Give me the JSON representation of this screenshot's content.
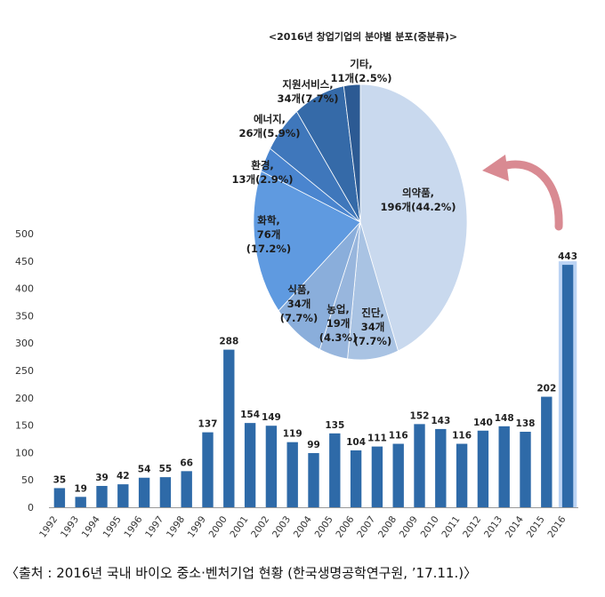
{
  "source_note": "〈출처 : 2016년 국내 바이오 중소·벤처기업 현황 (한국생명공학연구원, ’17.11.)〉",
  "colors": {
    "bar": "#2e6aa8",
    "bar_highlight_glow": "#9fc2f0",
    "arrow": "#d98a92",
    "grid": "#dddddd",
    "pie_palette": [
      "#c9d9ee",
      "#a9c3e3",
      "#98b6dd",
      "#8aaedb",
      "#5f9ae0",
      "#4a85cf",
      "#3f77bb",
      "#356aa8",
      "#2c5a93",
      "#214a7c"
    ]
  },
  "chart_data": [
    {
      "type": "bar",
      "categories": [
        "1992",
        "1993",
        "1994",
        "1995",
        "1996",
        "1997",
        "1998",
        "1999",
        "2000",
        "2001",
        "2002",
        "2003",
        "2004",
        "2005",
        "2006",
        "2007",
        "2008",
        "2009",
        "2010",
        "2011",
        "2012",
        "2013",
        "2014",
        "2015",
        "2016"
      ],
      "values": [
        35,
        19,
        39,
        42,
        54,
        55,
        66,
        137,
        288,
        154,
        149,
        119,
        99,
        135,
        104,
        111,
        116,
        152,
        143,
        116,
        140,
        148,
        138,
        202,
        443
      ],
      "ylim": [
        0,
        500
      ],
      "yticks": [
        "0",
        "50",
        "100",
        "150",
        "200",
        "250",
        "300",
        "350",
        "400",
        "450",
        "500"
      ],
      "highlight_category": "2016",
      "grid": false
    },
    {
      "type": "pie",
      "title": "<2016년 창업기업의 분야별 분포(중분류)>",
      "slices": [
        {
          "name": "의약품",
          "count": 196,
          "count_label": "196개",
          "percent": 44.2,
          "percent_label": "(44.2%)"
        },
        {
          "name": "진단",
          "count": 34,
          "count_label": "34개",
          "percent": 7.7,
          "percent_label": "(7.7%)"
        },
        {
          "name": "농업",
          "count": 19,
          "count_label": "19개",
          "percent": 4.3,
          "percent_label": "(4.3%)"
        },
        {
          "name": "식품",
          "count": 34,
          "count_label": "34개",
          "percent": 7.7,
          "percent_label": "(7.7%)"
        },
        {
          "name": "화학",
          "count": 76,
          "count_label": "76개",
          "percent": 17.2,
          "percent_label": "(17.2%)"
        },
        {
          "name": "환경",
          "count": 13,
          "count_label": "13개",
          "percent": 2.9,
          "percent_label": "(2.9%)"
        },
        {
          "name": "에너지",
          "count": 26,
          "count_label": "26개",
          "percent": 5.9,
          "percent_label": "(5.9%)"
        },
        {
          "name": "지원서비스",
          "count": 34,
          "count_label": "34개",
          "percent": 7.7,
          "percent_label": "(7.7%)"
        },
        {
          "name": "기타",
          "count": 11,
          "count_label": "11개",
          "percent": 2.5,
          "percent_label": "(2.5%)"
        }
      ]
    }
  ]
}
